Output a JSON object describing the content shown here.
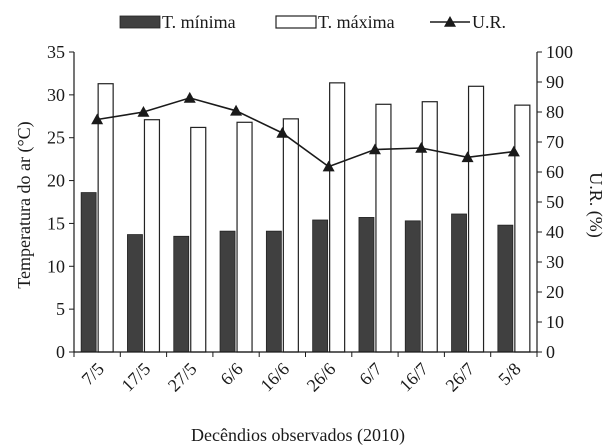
{
  "chart_data": {
    "type": "bar",
    "categories": [
      "7/5",
      "17/5",
      "27/5",
      "6/6",
      "16/6",
      "26/6",
      "6/7",
      "16/7",
      "26/7",
      "5/8"
    ],
    "series": [
      {
        "name": "T. mínima",
        "kind": "bar",
        "axis": "left",
        "color": "#404040",
        "values": [
          18.6,
          13.7,
          13.5,
          14.1,
          14.1,
          15.4,
          15.7,
          15.3,
          16.1,
          14.8
        ]
      },
      {
        "name": "T. máxima",
        "kind": "bar",
        "axis": "left",
        "color": "#ffffff",
        "values": [
          31.3,
          27.1,
          26.2,
          26.8,
          27.2,
          31.4,
          28.9,
          29.2,
          31.0,
          28.8
        ]
      },
      {
        "name": "U.R.",
        "kind": "line",
        "marker": "triangle",
        "axis": "right",
        "color": "#1a1a1a",
        "values": [
          77.5,
          80.0,
          84.7,
          80.4,
          73.0,
          61.8,
          67.5,
          68.0,
          64.9,
          66.8
        ]
      }
    ],
    "xlabel": "Decêndios observados (2010)",
    "ylabel": "Temperatura do ar (°C)",
    "y2label": "U.R. (%)",
    "ylim": [
      0,
      35
    ],
    "y2lim": [
      0,
      100
    ],
    "yticks": [
      "0",
      "5",
      "10",
      "15",
      "20",
      "25",
      "30",
      "35"
    ],
    "y2ticks": [
      "0",
      "10",
      "20",
      "30",
      "40",
      "50",
      "60",
      "70",
      "80",
      "90",
      "100"
    ],
    "legend_position": "top",
    "grid": false
  }
}
